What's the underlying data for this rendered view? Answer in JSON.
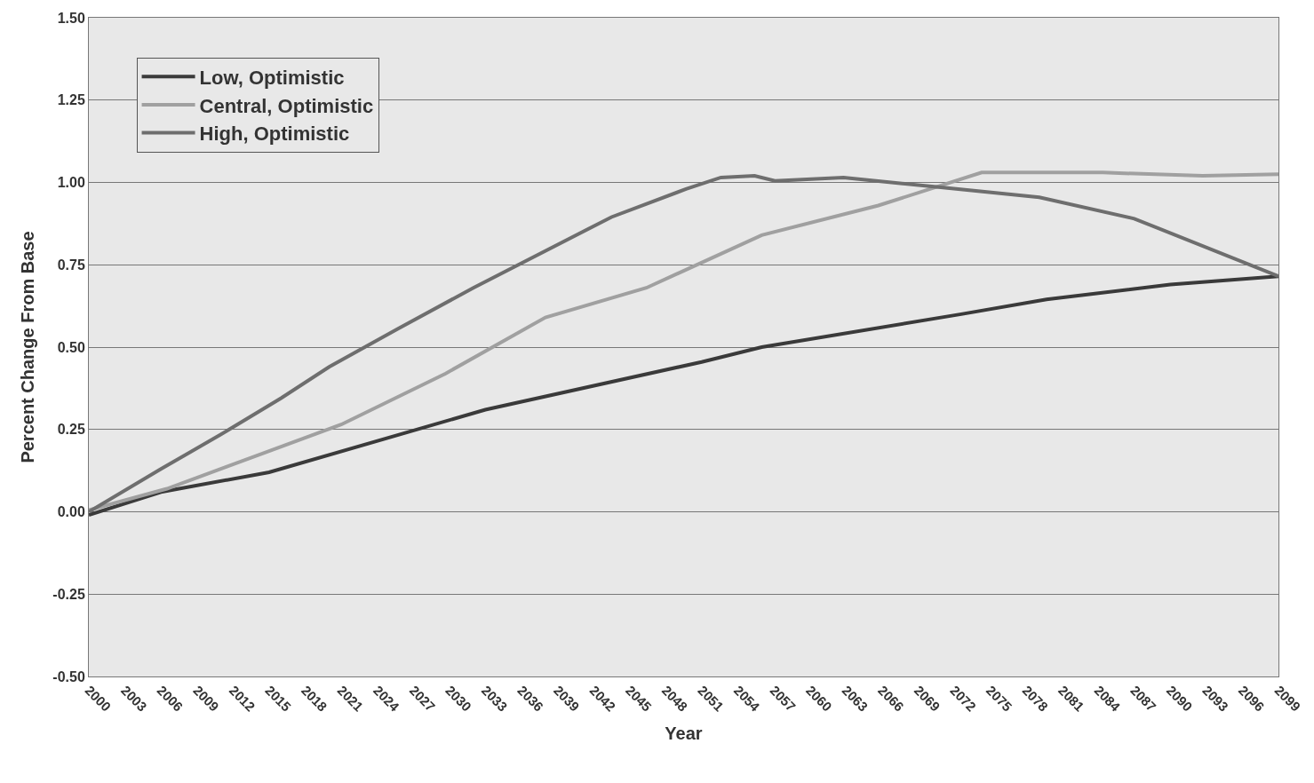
{
  "chart_data": {
    "type": "line",
    "xlabel": "Year",
    "ylabel": "Percent Change From Base",
    "xlim": [
      2000,
      2099
    ],
    "xticks": [
      2000,
      2003,
      2006,
      2009,
      2012,
      2015,
      2018,
      2021,
      2024,
      2027,
      2030,
      2033,
      2036,
      2039,
      2042,
      2045,
      2048,
      2051,
      2054,
      2057,
      2060,
      2063,
      2066,
      2069,
      2072,
      2075,
      2078,
      2081,
      2084,
      2087,
      2090,
      2093,
      2096,
      2099
    ],
    "ylim": [
      -0.5,
      1.5
    ],
    "yticks": [
      {
        "value": -0.5,
        "label": "-0.50"
      },
      {
        "value": -0.25,
        "label": "-0.25"
      },
      {
        "value": 0,
        "label": "0.00"
      },
      {
        "value": 0.25,
        "label": "0.25"
      },
      {
        "value": 0.5,
        "label": "0.50"
      },
      {
        "value": 0.75,
        "label": "0.75"
      },
      {
        "value": 1,
        "label": "1.00"
      },
      {
        "value": 1.25,
        "label": "1.25"
      },
      {
        "value": 1.5,
        "label": "1.50"
      }
    ],
    "grid": "y",
    "legend": "top left",
    "marker": "none",
    "line_style": "solid",
    "series": [
      {
        "name": "Low, Optimistic",
        "color": "#3a3a3a",
        "x": [
          2000,
          2006,
          2015,
          2033,
          2051,
          2056,
          2072.6,
          2079.7,
          2090,
          2099
        ],
        "values": [
          -0.01,
          0.06,
          0.12,
          0.31,
          0.455,
          0.5,
          0.6,
          0.645,
          0.69,
          0.715
        ]
      },
      {
        "name": "Central, Optimistic",
        "color": "#a0a0a0",
        "x": [
          2000,
          2006.5,
          2021,
          2029.7,
          2038,
          2046.4,
          2051.8,
          2056,
          2065.7,
          2074.3,
          2084.4,
          2092.7,
          2099
        ],
        "values": [
          0.005,
          0.07,
          0.265,
          0.42,
          0.59,
          0.68,
          0.77,
          0.84,
          0.93,
          1.03,
          1.03,
          1.02,
          1.025
        ]
      },
      {
        "name": "High, Optimistic",
        "color": "#6e6e6e",
        "x": [
          2000,
          2006,
          2011,
          2016,
          2020,
          2025.7,
          2032,
          2043.5,
          2049.7,
          2052.6,
          2055.4,
          2057.1,
          2062.8,
          2070.9,
          2079.1,
          2087,
          2099
        ],
        "values": [
          0.0,
          0.13,
          0.235,
          0.345,
          0.44,
          0.555,
          0.68,
          0.895,
          0.98,
          1.015,
          1.02,
          1.005,
          1.015,
          0.985,
          0.955,
          0.89,
          0.715
        ]
      }
    ]
  }
}
